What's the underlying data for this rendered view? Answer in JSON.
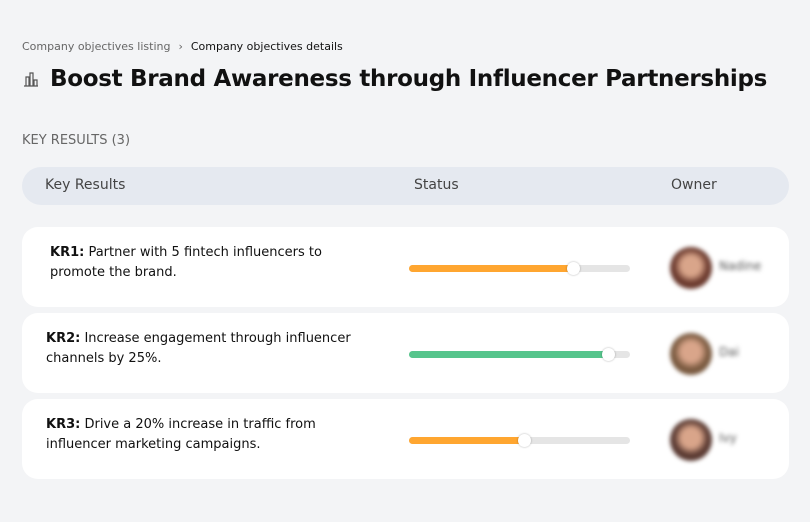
{
  "breadcrumb": {
    "items": [
      "Company objectives listing",
      "Company objectives details"
    ],
    "separator": "›"
  },
  "page": {
    "title": "Boost Brand Awareness through Influencer Partnerships",
    "icon": "building-chart-icon"
  },
  "key_results": {
    "label": "KEY RESULTS (3)",
    "columns": [
      "Key Results",
      "Status",
      "Owner"
    ],
    "rows": [
      {
        "code": "KR1:",
        "text": " Partner with 5 fintech influencers to promote the brand.",
        "progress": 74,
        "color": "#ffa630",
        "owner": "Nadine",
        "avatar": "#6b3a2e"
      },
      {
        "code": "KR2:",
        "text": " Increase engagement through influencer channels by 25%.",
        "progress": 90,
        "color": "#56c58c",
        "owner": "Dai",
        "avatar": "#7a5a40"
      },
      {
        "code": "KR3:",
        "text": " Drive a 20% increase in traffic from influencer marketing campaigns.",
        "progress": 52,
        "color": "#ffa630",
        "owner": "Ivy",
        "avatar": "#5a3a32"
      }
    ]
  }
}
